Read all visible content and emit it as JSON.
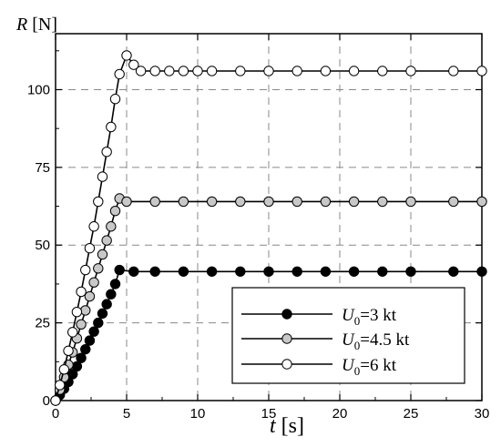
{
  "chart_data": {
    "type": "line",
    "xlabel_var": "t",
    "xlabel_unit": "[s]",
    "ylabel_var": "R",
    "ylabel_unit": "[N]",
    "xlim": [
      0,
      30
    ],
    "ylim": [
      0,
      118
    ],
    "xticks": [
      0,
      5,
      10,
      15,
      20,
      25,
      30
    ],
    "yticks": [
      0,
      25,
      50,
      75,
      100
    ],
    "grid": true,
    "legend_position": "bottom-right",
    "series": [
      {
        "name_var": "U",
        "name_sub": "0",
        "name_rest": "=3 kt",
        "marker_fill": "#000000",
        "x": [
          0,
          0.3,
          0.6,
          0.9,
          1.2,
          1.5,
          1.8,
          2.1,
          2.4,
          2.7,
          3.0,
          3.3,
          3.6,
          3.9,
          4.2,
          4.5,
          5.5,
          7,
          9,
          11,
          13,
          15,
          17,
          19,
          21,
          23,
          25,
          28,
          30
        ],
        "y": [
          0,
          1.8,
          3.8,
          6,
          8.5,
          11,
          13.7,
          16.5,
          19.3,
          22.2,
          25,
          28,
          31,
          34.2,
          37.5,
          42,
          41.5,
          41.5,
          41.5,
          41.5,
          41.5,
          41.5,
          41.5,
          41.5,
          41.5,
          41.5,
          41.5,
          41.5,
          41.5
        ]
      },
      {
        "name_var": "U",
        "name_sub": "0",
        "name_rest": "=4.5 kt",
        "marker_fill": "#c8c8c8",
        "x": [
          0,
          0.3,
          0.6,
          0.9,
          1.2,
          1.5,
          1.8,
          2.1,
          2.4,
          2.7,
          3.0,
          3.3,
          3.6,
          3.9,
          4.2,
          4.5,
          5.0,
          7,
          9,
          11,
          13,
          15,
          17,
          19,
          21,
          23,
          25,
          28,
          30
        ],
        "y": [
          0,
          3.5,
          7.5,
          11.5,
          15.5,
          20,
          24.5,
          29,
          33.5,
          38,
          42.5,
          47,
          51.5,
          56,
          61,
          65,
          64,
          64,
          64,
          64,
          64,
          64,
          64,
          64,
          64,
          64,
          64,
          64,
          64
        ]
      },
      {
        "name_var": "U",
        "name_sub": "0",
        "name_rest": "=6 kt",
        "marker_fill": "#ffffff",
        "x": [
          0,
          0.3,
          0.6,
          0.9,
          1.2,
          1.5,
          1.8,
          2.1,
          2.4,
          2.7,
          3.0,
          3.3,
          3.6,
          3.9,
          4.2,
          4.5,
          5.0,
          5.5,
          6,
          7,
          8,
          9,
          10,
          11,
          13,
          15,
          17,
          19,
          21,
          23,
          25,
          28,
          30
        ],
        "y": [
          0,
          5,
          10,
          16,
          22,
          28.5,
          35,
          42,
          49,
          56,
          64,
          72,
          80,
          88,
          97,
          105,
          111,
          108,
          106,
          106,
          106,
          106,
          106,
          106,
          106,
          106,
          106,
          106,
          106,
          106,
          106,
          106,
          106
        ]
      }
    ]
  }
}
